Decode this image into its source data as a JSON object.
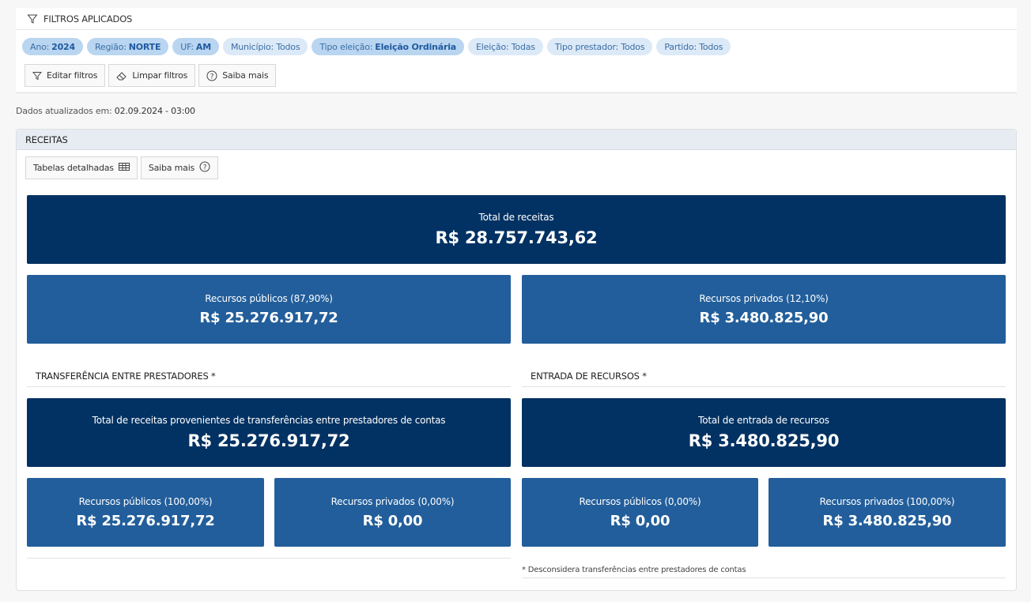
{
  "filters": {
    "title": "FILTROS APLICADOS",
    "chips": [
      {
        "label": "Ano:",
        "value": "2024",
        "active": true
      },
      {
        "label": "Região:",
        "value": "NORTE",
        "active": true
      },
      {
        "label": "UF:",
        "value": "AM",
        "active": true
      },
      {
        "label": "Município: Todos",
        "value": "",
        "active": false
      },
      {
        "label": "Tipo eleição:",
        "value": "Eleição Ordinária",
        "active": true
      },
      {
        "label": "Eleição: Todas",
        "value": "",
        "active": false
      },
      {
        "label": "Tipo prestador: Todos",
        "value": "",
        "active": false
      },
      {
        "label": "Partido: Todos",
        "value": "",
        "active": false
      }
    ],
    "buttons": {
      "edit": "Editar filtros",
      "clear": "Limpar filtros",
      "help": "Saiba mais"
    }
  },
  "updated": {
    "label": "Dados atualizados em:",
    "value": "02.09.2024 - 03:00"
  },
  "receitas": {
    "title": "RECEITAS",
    "tools": {
      "tables": "Tabelas detalhadas",
      "help": "Saiba mais"
    },
    "total": {
      "label": "Total de receitas",
      "value": "R$ 28.757.743,62"
    },
    "publicos": {
      "label": "Recursos públicos (87,90%)",
      "value": "R$ 25.276.917,72"
    },
    "privados": {
      "label": "Recursos privados (12,10%)",
      "value": "R$ 3.480.825,90"
    },
    "transferencia": {
      "title": "TRANSFERÊNCIA ENTRE PRESTADORES *",
      "total": {
        "label": "Total de receitas provenientes de transferências entre prestadores de contas",
        "value": "R$ 25.276.917,72"
      },
      "publicos": {
        "label": "Recursos públicos (100,00%)",
        "value": "R$ 25.276.917,72"
      },
      "privados": {
        "label": "Recursos privados (0,00%)",
        "value": "R$ 0,00"
      }
    },
    "entrada": {
      "title": "ENTRADA DE RECURSOS *",
      "total": {
        "label": "Total de entrada de recursos",
        "value": "R$ 3.480.825,90"
      },
      "publicos": {
        "label": "Recursos públicos (0,00%)",
        "value": "R$ 0,00"
      },
      "privados": {
        "label": "Recursos privados (100,00%)",
        "value": "R$ 3.480.825,90"
      }
    },
    "footnote": "* Desconsidera transferências entre prestadores de contas"
  },
  "colors": {
    "tile_dark": "#023263",
    "tile_mid": "#225e9b",
    "chip_bg": "#dce9f7",
    "chip_active_bg": "#b9d5f0"
  },
  "icons": [
    "filter-icon",
    "eraser-icon",
    "help-icon",
    "table-icon"
  ]
}
